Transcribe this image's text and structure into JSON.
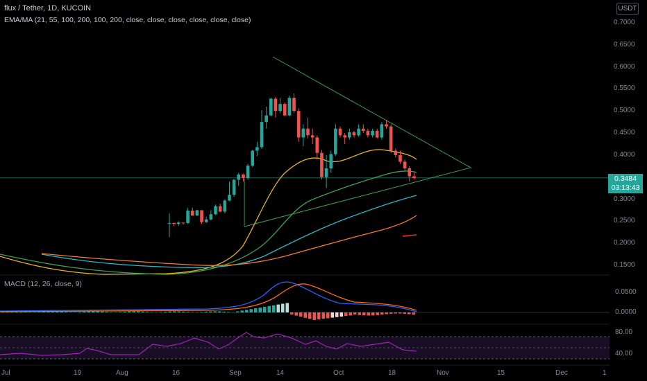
{
  "header": {
    "symbol_line": "flux / Tether, 1D, KUCOIN",
    "indicator_line": "EMA/MA (21, 55, 100, 200, 100, 200, close, close, close, close, close, close)",
    "currency_badge": "USDT"
  },
  "price_badge": {
    "price": "0.3484",
    "countdown": "03:13:43"
  },
  "macd_label": "MACD (12, 26, close, 9)",
  "rsi_axis": [
    "80.00",
    "40.00"
  ],
  "chart_data": {
    "type": "candlestick",
    "y_axis_ticks": [
      "0.7000",
      "0.6500",
      "0.6000",
      "0.5500",
      "0.5000",
      "0.4500",
      "0.4000",
      "0.3000",
      "0.2500",
      "0.2000",
      "0.1500"
    ],
    "ylim": [
      0.13,
      0.72
    ],
    "macd_ticks": [
      "0.0500",
      "0.0000"
    ],
    "x_axis_ticks": [
      "Jul",
      "19",
      "Aug",
      "16",
      "Sep",
      "14",
      "Oct",
      "18",
      "Nov",
      "15",
      "Dec",
      "1"
    ],
    "last_price": 0.3484,
    "candles": [
      [
        0.246,
        0.268,
        0.214,
        0.246
      ],
      [
        0.246,
        0.247,
        0.239,
        0.244
      ],
      [
        0.244,
        0.25,
        0.24,
        0.247
      ],
      [
        0.247,
        0.247,
        0.242,
        0.246
      ],
      [
        0.246,
        0.28,
        0.244,
        0.274
      ],
      [
        0.274,
        0.281,
        0.262,
        0.263
      ],
      [
        0.263,
        0.276,
        0.262,
        0.275
      ],
      [
        0.275,
        0.275,
        0.244,
        0.248
      ],
      [
        0.248,
        0.26,
        0.246,
        0.254
      ],
      [
        0.254,
        0.275,
        0.252,
        0.266
      ],
      [
        0.266,
        0.288,
        0.264,
        0.284
      ],
      [
        0.284,
        0.29,
        0.27,
        0.272
      ],
      [
        0.272,
        0.3,
        0.268,
        0.297
      ],
      [
        0.297,
        0.34,
        0.295,
        0.31
      ],
      [
        0.31,
        0.346,
        0.305,
        0.344
      ],
      [
        0.344,
        0.36,
        0.33,
        0.356
      ],
      [
        0.356,
        0.358,
        0.34,
        0.348
      ],
      [
        0.348,
        0.38,
        0.344,
        0.376
      ],
      [
        0.376,
        0.412,
        0.373,
        0.41
      ],
      [
        0.41,
        0.43,
        0.398,
        0.418
      ],
      [
        0.418,
        0.502,
        0.414,
        0.475
      ],
      [
        0.475,
        0.51,
        0.46,
        0.49
      ],
      [
        0.49,
        0.53,
        0.488,
        0.528
      ],
      [
        0.528,
        0.532,
        0.485,
        0.5
      ],
      [
        0.5,
        0.53,
        0.495,
        0.516
      ],
      [
        0.516,
        0.52,
        0.488,
        0.49
      ],
      [
        0.49,
        0.535,
        0.488,
        0.53
      ],
      [
        0.53,
        0.54,
        0.495,
        0.5
      ],
      [
        0.5,
        0.506,
        0.43,
        0.44
      ],
      [
        0.44,
        0.47,
        0.42,
        0.46
      ],
      [
        0.46,
        0.485,
        0.438,
        0.445
      ],
      [
        0.445,
        0.46,
        0.425,
        0.44
      ],
      [
        0.44,
        0.445,
        0.39,
        0.405
      ],
      [
        0.405,
        0.412,
        0.345,
        0.35
      ],
      [
        0.35,
        0.4,
        0.325,
        0.37
      ],
      [
        0.37,
        0.41,
        0.36,
        0.402
      ],
      [
        0.402,
        0.47,
        0.398,
        0.46
      ],
      [
        0.46,
        0.465,
        0.44,
        0.445
      ],
      [
        0.445,
        0.45,
        0.425,
        0.44
      ],
      [
        0.44,
        0.46,
        0.435,
        0.452
      ],
      [
        0.452,
        0.455,
        0.44,
        0.445
      ],
      [
        0.445,
        0.47,
        0.442,
        0.46
      ],
      [
        0.46,
        0.47,
        0.45,
        0.455
      ],
      [
        0.455,
        0.46,
        0.44,
        0.445
      ],
      [
        0.445,
        0.46,
        0.44,
        0.455
      ],
      [
        0.455,
        0.46,
        0.438,
        0.44
      ],
      [
        0.44,
        0.475,
        0.435,
        0.47
      ],
      [
        0.47,
        0.48,
        0.46,
        0.465
      ],
      [
        0.465,
        0.47,
        0.405,
        0.41
      ],
      [
        0.41,
        0.415,
        0.395,
        0.4
      ],
      [
        0.4,
        0.41,
        0.38,
        0.385
      ],
      [
        0.385,
        0.39,
        0.365,
        0.37
      ],
      [
        0.37,
        0.375,
        0.34,
        0.352
      ],
      [
        0.352,
        0.36,
        0.345,
        0.348
      ]
    ]
  }
}
